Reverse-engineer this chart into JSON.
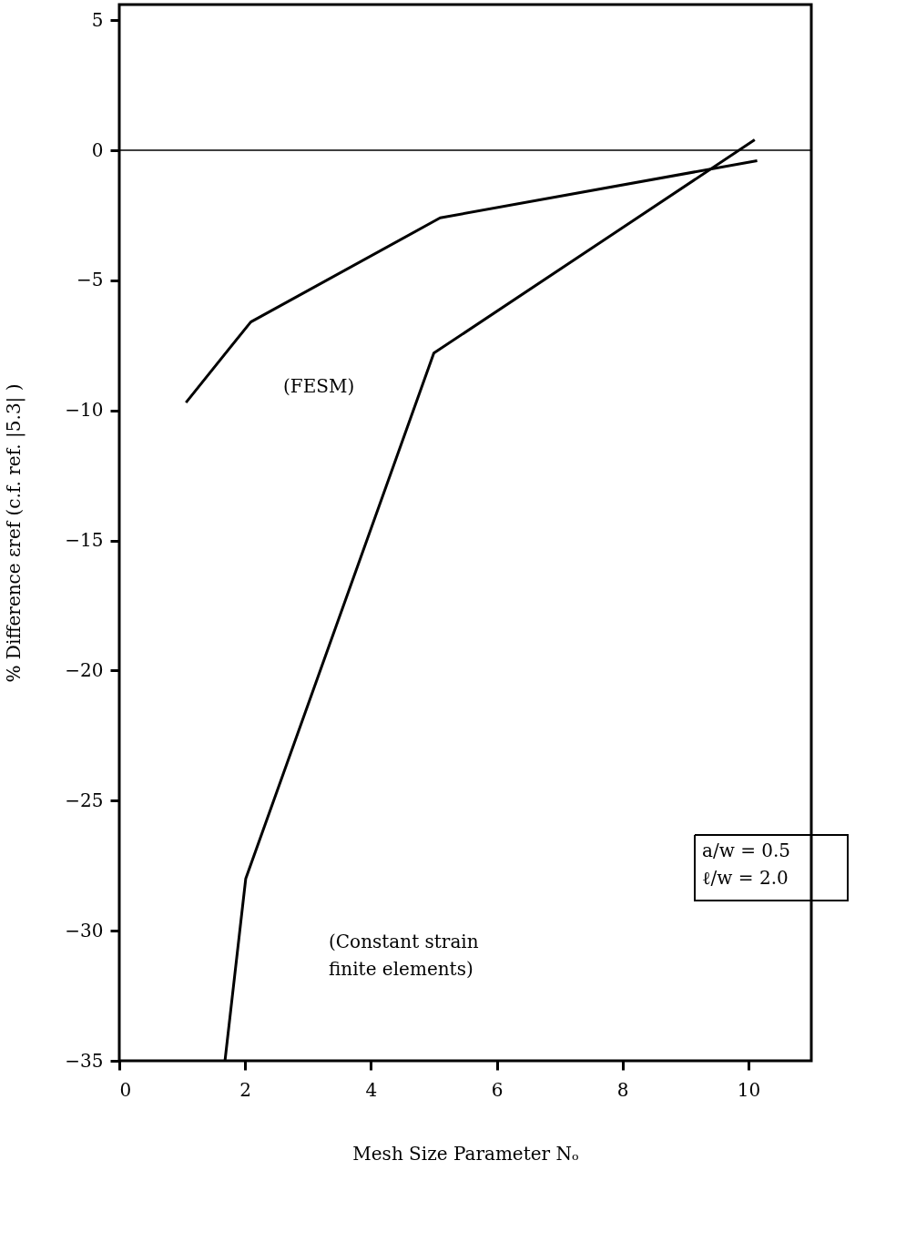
{
  "chart_data": {
    "type": "line",
    "xlabel": "Mesh Size Parameter Nₒ",
    "ylabel": "% Difference εref (c.f. ref. |5.3| )",
    "series": [
      {
        "color": "#000000",
        "x": [
          1.06,
          2.09,
          5.1,
          10.14
        ],
        "values": [
          -9.7,
          -6.6,
          -2.6,
          -0.4
        ]
      },
      {
        "color": "#000000",
        "x": [
          1.68,
          2.01,
          5.0,
          10.1
        ],
        "values": [
          -35,
          -28,
          -7.8,
          0.4
        ]
      }
    ],
    "xlim": [
      0,
      11
    ],
    "xticks": [
      0,
      2,
      4,
      6,
      8,
      10
    ],
    "ylim": [
      -35,
      5.6
    ],
    "yticks": [
      5,
      0,
      -5,
      -10,
      -15,
      -20,
      -25,
      -30,
      -35
    ],
    "ref_lines": [
      {
        "axis": "y",
        "value": 0,
        "color": "#000000"
      }
    ],
    "annotations": [
      "(FESM)",
      "(Constant strain\nfinite elements)",
      "a/w = 0.5\nℓ/w = 2.0"
    ],
    "grid": false,
    "marker": "none",
    "line_style": "solid"
  }
}
